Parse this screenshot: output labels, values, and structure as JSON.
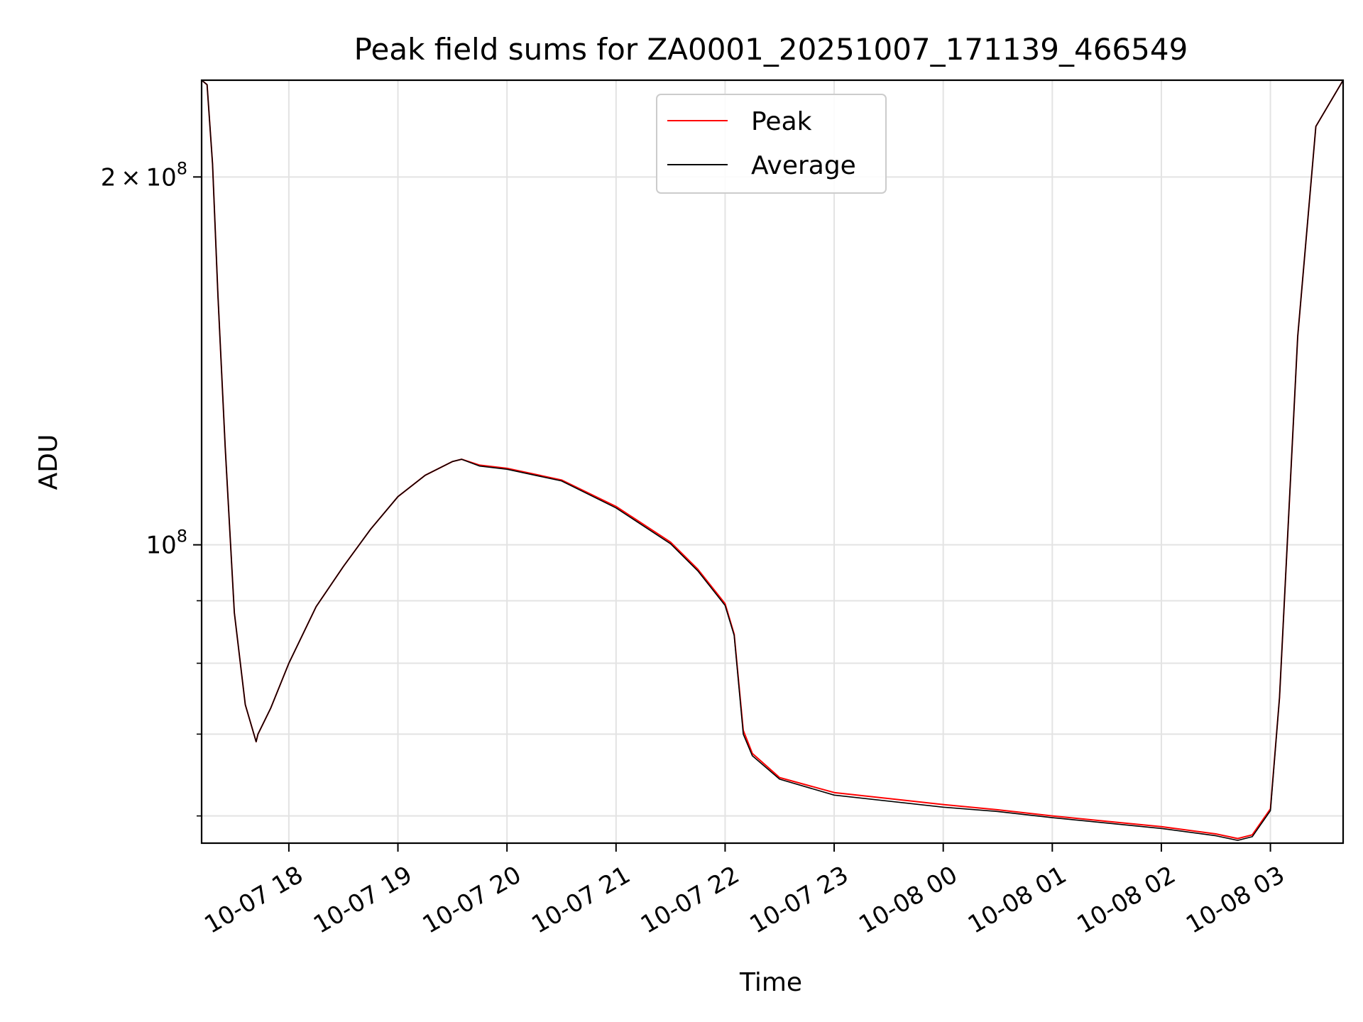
{
  "chart_data": {
    "type": "line",
    "title": "Peak field sums for ZA0001_20251007_171139_466549",
    "xlabel": "Time",
    "ylabel": "ADU",
    "yscale": "log",
    "grid": true,
    "legend_position": "top-center",
    "x_range": [
      "10-07 17:12",
      "10-08 03:40"
    ],
    "y_range": [
      57000000,
      240000000
    ],
    "x_ticks": [
      "10-07 18",
      "10-07 19",
      "10-07 20",
      "10-07 21",
      "10-07 22",
      "10-07 23",
      "10-08 00",
      "10-08 01",
      "10-08 02",
      "10-08 03"
    ],
    "y_ticks": [
      {
        "value": 100000000,
        "base": "10",
        "exp": "8",
        "coef": ""
      },
      {
        "value": 200000000,
        "base": "10",
        "exp": "8",
        "coef": "2 × "
      }
    ],
    "y_minor_ticks": [
      60000000,
      70000000,
      80000000,
      90000000
    ],
    "x": [
      "10-07 17:12",
      "10-07 17:15",
      "10-07 17:18",
      "10-07 17:21",
      "10-07 17:25",
      "10-07 17:30",
      "10-07 17:36",
      "10-07 17:42",
      "10-07 17:43",
      "10-07 17:50",
      "10-07 18:00",
      "10-07 18:15",
      "10-07 18:30",
      "10-07 18:45",
      "10-07 19:00",
      "10-07 19:15",
      "10-07 19:30",
      "10-07 19:35",
      "10-07 19:45",
      "10-07 20:00",
      "10-07 20:30",
      "10-07 21:00",
      "10-07 21:30",
      "10-07 21:45",
      "10-07 22:00",
      "10-07 22:05",
      "10-07 22:10",
      "10-07 22:15",
      "10-07 22:30",
      "10-07 23:00",
      "10-08 00:00",
      "10-08 00:30",
      "10-08 01:00",
      "10-08 01:30",
      "10-08 02:00",
      "10-08 02:30",
      "10-08 02:42",
      "10-08 02:50",
      "10-08 03:00",
      "10-08 03:05",
      "10-08 03:15",
      "10-08 03:25",
      "10-08 03:40"
    ],
    "series": [
      {
        "name": "Peak",
        "color": "#ff0000",
        "values": [
          240000000,
          238000000,
          205000000,
          160000000,
          120000000,
          88000000,
          74000000,
          69000000,
          70000000,
          73500000,
          80000000,
          89000000,
          96000000,
          103000000,
          109500000,
          114000000,
          117000000,
          117500000,
          116200000,
          115500000,
          113000000,
          107500000,
          100500000,
          95500000,
          89500000,
          84500000,
          70500000,
          67500000,
          64500000,
          62700000,
          61300000,
          60700000,
          60000000,
          59400000,
          58800000,
          58000000,
          57500000,
          57900000,
          60800000,
          75000000,
          148000000,
          220000000,
          240000000
        ]
      },
      {
        "name": "Average",
        "color": "#000000",
        "values": [
          240000000,
          238000000,
          205000000,
          160000000,
          120000000,
          88000000,
          74000000,
          69000000,
          70000000,
          73500000,
          80000000,
          89000000,
          96000000,
          103000000,
          109500000,
          114000000,
          117000000,
          117500000,
          116000000,
          115300000,
          112800000,
          107200000,
          100200000,
          95200000,
          89200000,
          84300000,
          70000000,
          67200000,
          64300000,
          62400000,
          61000000,
          60500000,
          59800000,
          59200000,
          58600000,
          57800000,
          57300000,
          57700000,
          60600000,
          75000000,
          148000000,
          220000000,
          240000000
        ]
      }
    ]
  }
}
